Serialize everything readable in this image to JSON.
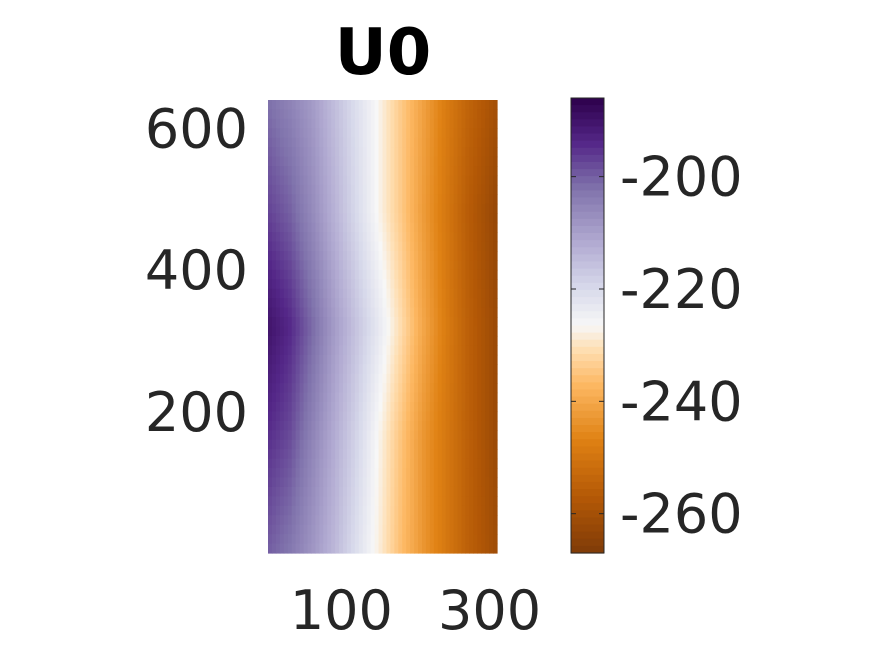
{
  "chart_data": {
    "type": "heatmap",
    "title": "U0",
    "xlabel": "",
    "ylabel": "",
    "xlim": [
      1,
      310
    ],
    "ylim": [
      1,
      640
    ],
    "x_ticks": [
      100,
      300
    ],
    "y_ticks": [
      200,
      400,
      600
    ],
    "x_tick_labels": [
      "100",
      "300"
    ],
    "y_tick_labels": [
      "200",
      "400",
      "600"
    ],
    "grid": false,
    "colorbar": {
      "limits": [
        -267,
        -186
      ],
      "ticks": [
        -200,
        -220,
        -240,
        -260
      ],
      "tick_labels": [
        "-200",
        "-220",
        "-240",
        "-260"
      ],
      "colormap": "PuOr",
      "high_color": "#2d004b",
      "mid_color": "#f7f7f7",
      "low_color": "#7f3b08"
    },
    "field": {
      "description_of_values": "value varies mainly with x; high at left, low at right",
      "x_samples": [
        1,
        30,
        60,
        90,
        120,
        150,
        180,
        210,
        240,
        270,
        310
      ],
      "y_samples": [
        1,
        160,
        320,
        480,
        640
      ],
      "values": [
        [
          -200,
          -203,
          -208,
          -214,
          -221,
          -228,
          -236,
          -243,
          -249,
          -255,
          -261
        ],
        [
          -195,
          -198,
          -205,
          -212,
          -219,
          -227,
          -235,
          -243,
          -249,
          -255,
          -262
        ],
        [
          -190,
          -194,
          -201,
          -209,
          -216,
          -223,
          -231,
          -240,
          -248,
          -255,
          -262
        ],
        [
          -197,
          -200,
          -206,
          -213,
          -220,
          -227,
          -234,
          -242,
          -249,
          -256,
          -263
        ],
        [
          -202,
          -205,
          -209,
          -215,
          -221,
          -227,
          -234,
          -241,
          -248,
          -254,
          -260
        ]
      ]
    }
  }
}
